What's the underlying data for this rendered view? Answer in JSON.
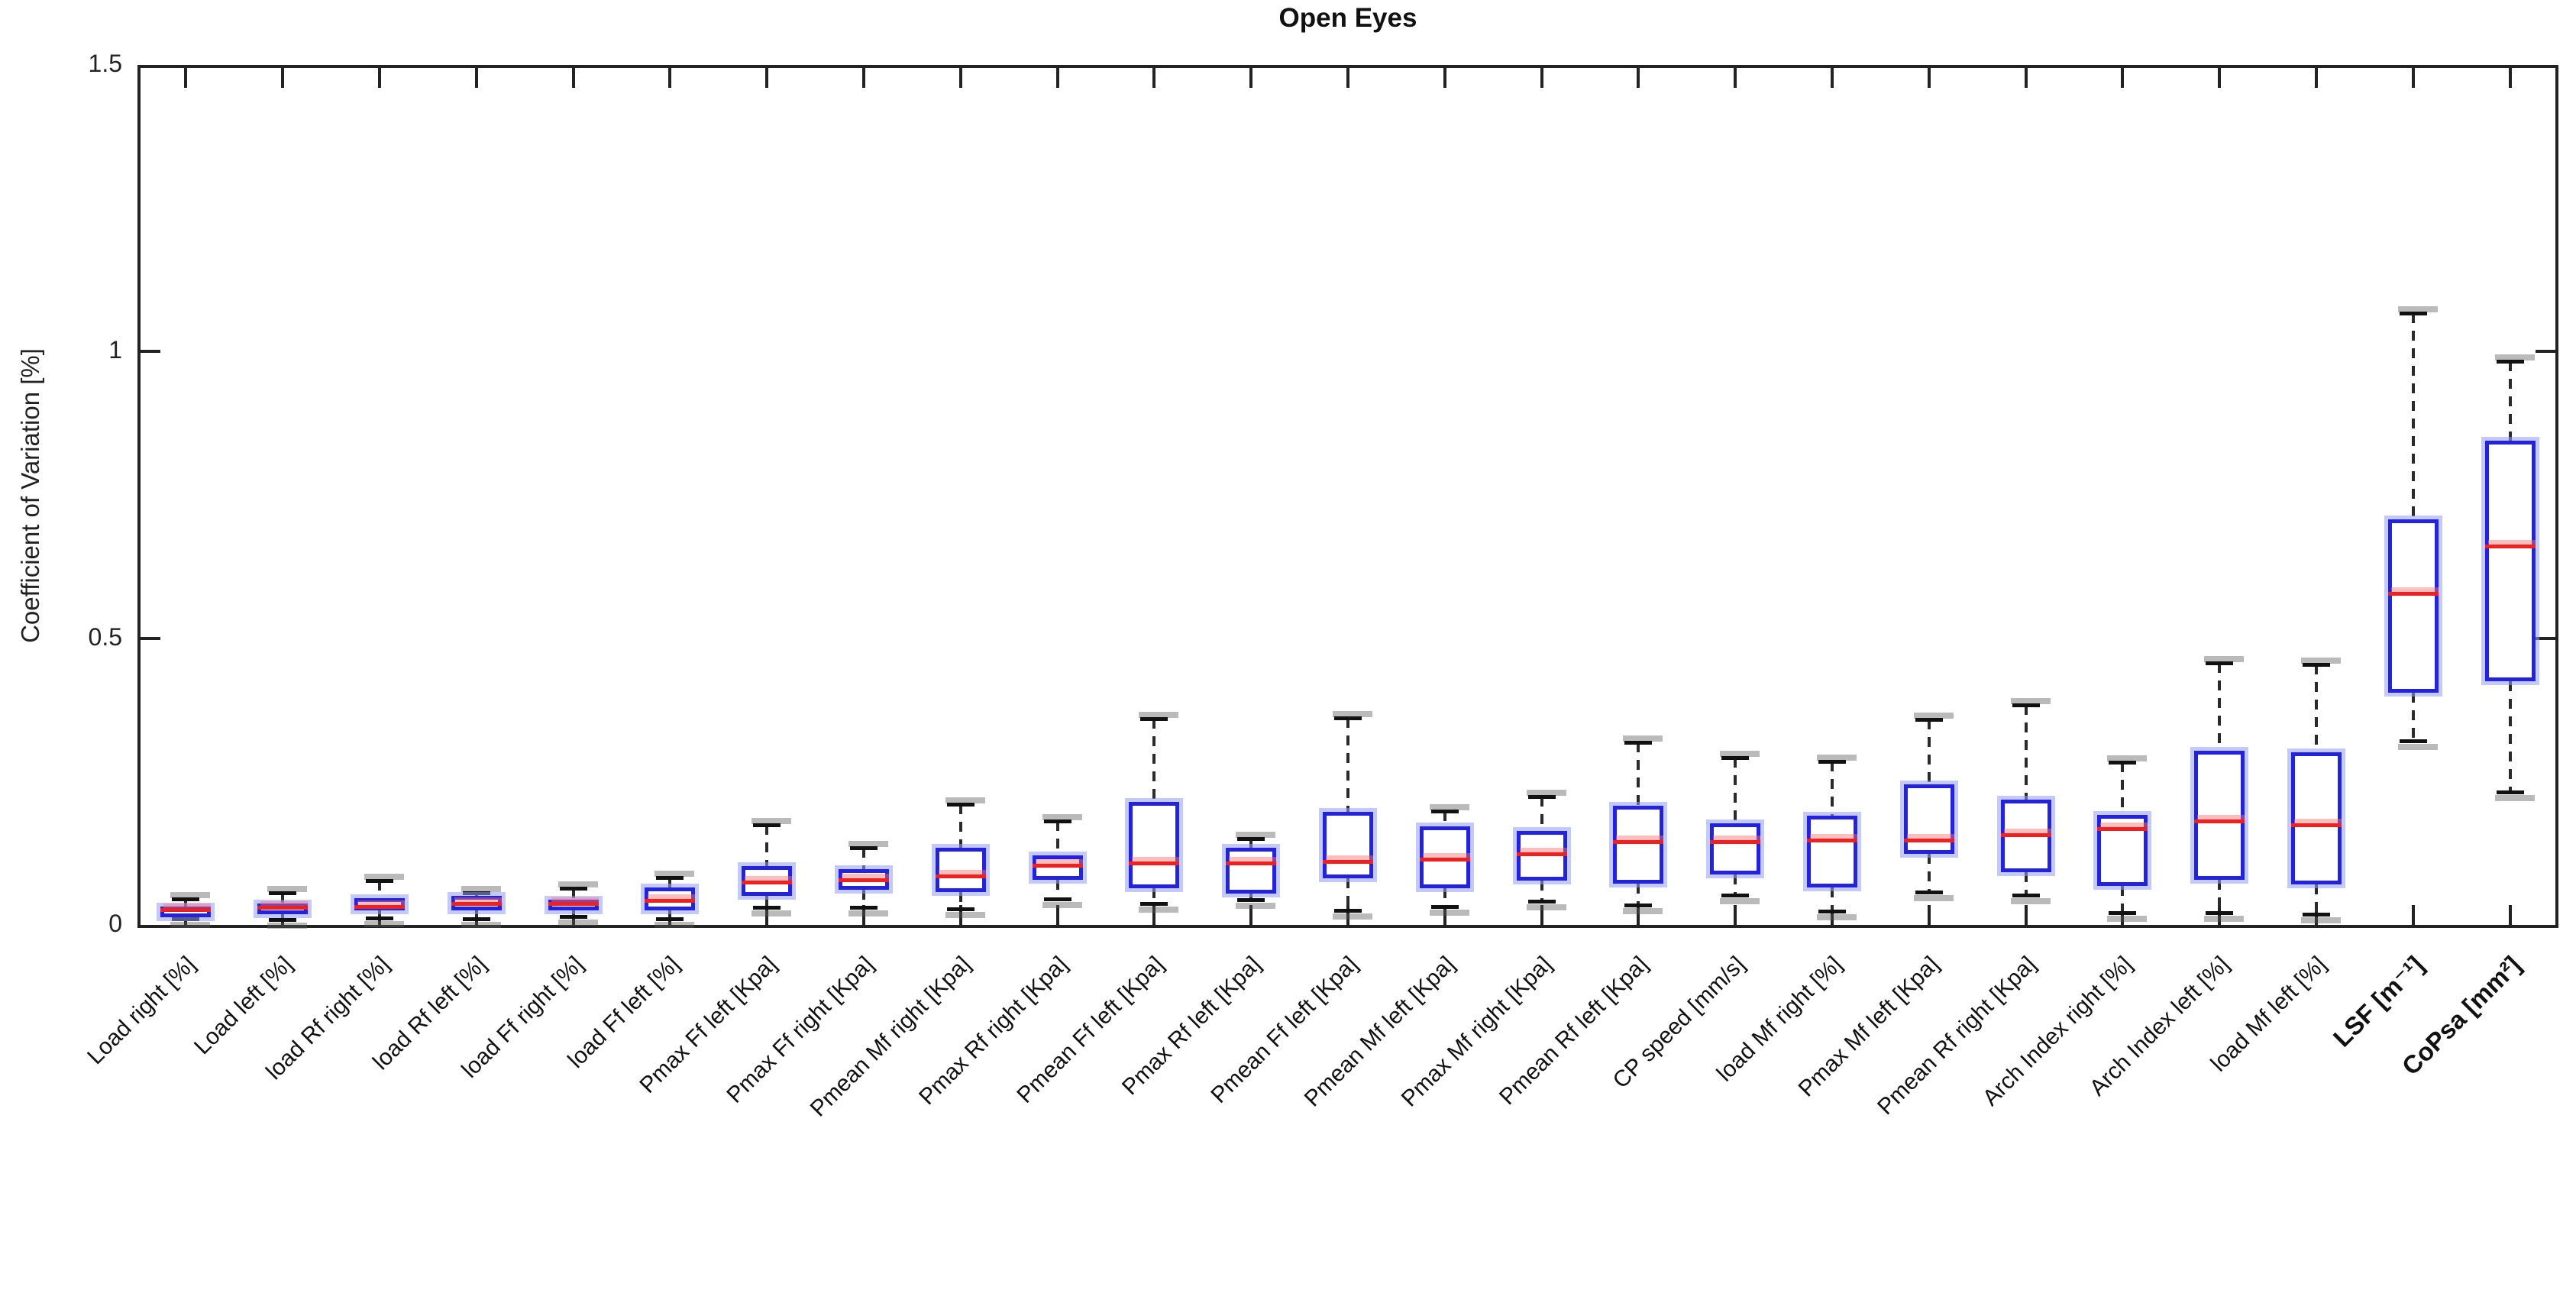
{
  "chart_data": {
    "type": "box",
    "title": "Open Eyes",
    "ylabel": "Coefficient of Variation [%]",
    "xlabel": "",
    "ylim": [
      0,
      1.5
    ],
    "yticks": [
      {
        "value": 0,
        "label": "0"
      },
      {
        "value": 0.5,
        "label": "0.5"
      },
      {
        "value": 1,
        "label": "1"
      },
      {
        "value": 1.5,
        "label": "1.5"
      }
    ],
    "grid": false,
    "legend": "none",
    "colors": {
      "box": "#2323dd",
      "box_halo": "#949cf8",
      "median": "#ee2020",
      "median_halo": "#ff6e6e",
      "whisker": "#2a2a2a",
      "axis": "#222222"
    },
    "boxes": [
      {
        "label": "Load right [%]",
        "whisker_low": 0.011,
        "q1": 0.021,
        "median": 0.027,
        "q3": 0.032,
        "whisker_high": 0.045,
        "bold": false
      },
      {
        "label": "Load left [%]",
        "whisker_low": 0.009,
        "q1": 0.021,
        "median": 0.031,
        "q3": 0.037,
        "whisker_high": 0.056,
        "bold": false
      },
      {
        "label": "load Rf right [%]",
        "whisker_low": 0.012,
        "q1": 0.025,
        "median": 0.032,
        "q3": 0.047,
        "whisker_high": 0.077,
        "bold": false
      },
      {
        "label": "load Rf left [%]",
        "whisker_low": 0.011,
        "q1": 0.025,
        "median": 0.037,
        "q3": 0.051,
        "whisker_high": 0.056,
        "bold": false
      },
      {
        "label": "load Ff right [%]",
        "whisker_low": 0.015,
        "q1": 0.026,
        "median": 0.037,
        "q3": 0.044,
        "whisker_high": 0.064,
        "bold": false
      },
      {
        "label": "load Ff left [%]",
        "whisker_low": 0.01,
        "q1": 0.025,
        "median": 0.042,
        "q3": 0.065,
        "whisker_high": 0.082,
        "bold": false
      },
      {
        "label": "Pmax Ff left [Kpa]",
        "whisker_low": 0.03,
        "q1": 0.05,
        "median": 0.075,
        "q3": 0.102,
        "whisker_high": 0.175,
        "bold": false
      },
      {
        "label": "Pmax Ff right [Kpa]",
        "whisker_low": 0.031,
        "q1": 0.061,
        "median": 0.079,
        "q3": 0.097,
        "whisker_high": 0.134,
        "bold": false
      },
      {
        "label": "Pmean Mf right [Kpa]",
        "whisker_low": 0.028,
        "q1": 0.057,
        "median": 0.085,
        "q3": 0.134,
        "whisker_high": 0.21,
        "bold": false
      },
      {
        "label": "Pmax Rf right [Kpa]",
        "whisker_low": 0.045,
        "q1": 0.079,
        "median": 0.104,
        "q3": 0.121,
        "whisker_high": 0.181,
        "bold": false
      },
      {
        "label": "Pmean Ff left [Kpa]",
        "whisker_low": 0.037,
        "q1": 0.064,
        "median": 0.108,
        "q3": 0.214,
        "whisker_high": 0.36,
        "bold": false
      },
      {
        "label": "Pmax Rf left [Kpa]",
        "whisker_low": 0.044,
        "q1": 0.055,
        "median": 0.108,
        "q3": 0.134,
        "whisker_high": 0.15,
        "bold": false
      },
      {
        "label": "Pmean Ff left [Kpa]",
        "whisker_low": 0.025,
        "q1": 0.081,
        "median": 0.111,
        "q3": 0.197,
        "whisker_high": 0.361,
        "bold": false
      },
      {
        "label": "Pmean Mf left [Kpa]",
        "whisker_low": 0.032,
        "q1": 0.064,
        "median": 0.115,
        "q3": 0.172,
        "whisker_high": 0.199,
        "bold": false
      },
      {
        "label": "Pmax Mf right [Kpa]",
        "whisker_low": 0.041,
        "q1": 0.077,
        "median": 0.124,
        "q3": 0.164,
        "whisker_high": 0.224,
        "bold": false
      },
      {
        "label": "Pmean Rf left [Kpa]",
        "whisker_low": 0.035,
        "q1": 0.072,
        "median": 0.145,
        "q3": 0.208,
        "whisker_high": 0.318,
        "bold": false
      },
      {
        "label": "CP speed [mm/s]",
        "whisker_low": 0.052,
        "q1": 0.088,
        "median": 0.145,
        "q3": 0.177,
        "whisker_high": 0.292,
        "bold": false
      },
      {
        "label": "load Mf right [%]",
        "whisker_low": 0.024,
        "q1": 0.065,
        "median": 0.148,
        "q3": 0.19,
        "whisker_high": 0.285,
        "bold": false
      },
      {
        "label": "Pmax Mf left [Kpa]",
        "whisker_low": 0.057,
        "q1": 0.124,
        "median": 0.148,
        "q3": 0.245,
        "whisker_high": 0.358,
        "bold": false
      },
      {
        "label": "Pmean Rf right [Kpa]",
        "whisker_low": 0.052,
        "q1": 0.092,
        "median": 0.157,
        "q3": 0.218,
        "whisker_high": 0.384,
        "bold": false
      },
      {
        "label": "Arch Index right [%]",
        "whisker_low": 0.021,
        "q1": 0.068,
        "median": 0.168,
        "q3": 0.192,
        "whisker_high": 0.284,
        "bold": false
      },
      {
        "label": "Arch Index left [%]",
        "whisker_low": 0.021,
        "q1": 0.079,
        "median": 0.181,
        "q3": 0.304,
        "whisker_high": 0.457,
        "bold": false
      },
      {
        "label": "load Mf left [%]",
        "whisker_low": 0.019,
        "q1": 0.071,
        "median": 0.174,
        "q3": 0.301,
        "whisker_high": 0.454,
        "bold": false
      },
      {
        "label": "LSF [m⁻¹]",
        "whisker_low": 0.321,
        "q1": 0.405,
        "median": 0.578,
        "q3": 0.707,
        "whisker_high": 1.067,
        "bold": true
      },
      {
        "label": "CoPsa [mm²]",
        "whisker_low": 0.232,
        "q1": 0.425,
        "median": 0.661,
        "q3": 0.845,
        "whisker_high": 0.983,
        "bold": true
      }
    ]
  }
}
